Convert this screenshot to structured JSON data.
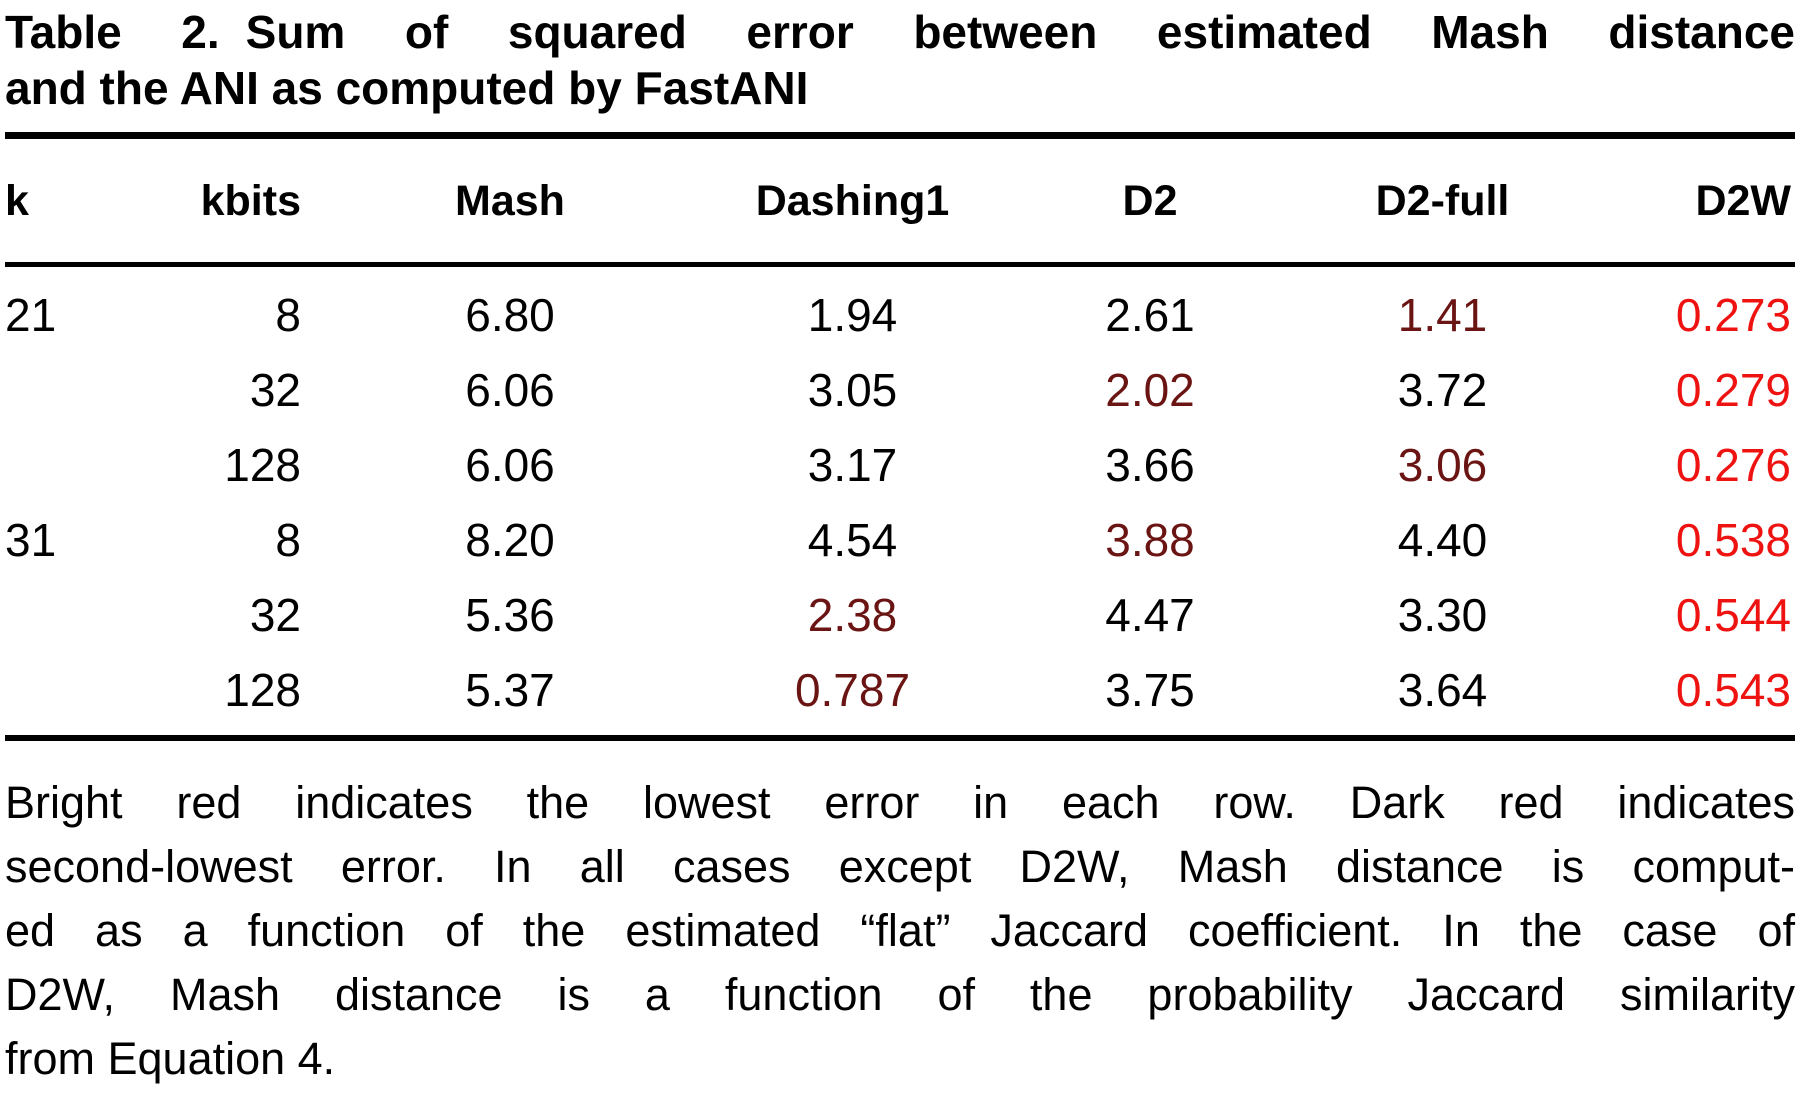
{
  "title": {
    "label": "Table 2.",
    "line1": "Sum of squared error between estimated Mash distance",
    "line2": "and the ANI as computed by FastANI"
  },
  "colors": {
    "lowest": "#ee1311",
    "second_lowest": "#6a1413",
    "text": "#000000",
    "background": "#ffffff"
  },
  "legend": {
    "lowest_label": "Bright red = lowest error in row",
    "second_lowest_label": "Dark red = second-lowest error in row"
  },
  "table": {
    "columns": [
      {
        "key": "k",
        "label": "k",
        "align": "left"
      },
      {
        "key": "kbits",
        "label": "kbits",
        "align": "right"
      },
      {
        "key": "mash",
        "label": "Mash",
        "align": "center"
      },
      {
        "key": "dashing1",
        "label": "Dashing1",
        "align": "center"
      },
      {
        "key": "d2",
        "label": "D2",
        "align": "center"
      },
      {
        "key": "d2-full",
        "label": "D2-full",
        "align": "center"
      },
      {
        "key": "d2w",
        "label": "D2W",
        "align": "right"
      }
    ],
    "rows": [
      {
        "cells": [
          {
            "text": "21"
          },
          {
            "text": "8"
          },
          {
            "text": "6.80"
          },
          {
            "text": "1.94"
          },
          {
            "text": "2.61"
          },
          {
            "text": "1.41",
            "emphasis": "second_lowest"
          },
          {
            "text": "0.273",
            "emphasis": "lowest"
          }
        ]
      },
      {
        "cells": [
          {
            "text": ""
          },
          {
            "text": "32"
          },
          {
            "text": "6.06"
          },
          {
            "text": "3.05"
          },
          {
            "text": "2.02",
            "emphasis": "second_lowest"
          },
          {
            "text": "3.72"
          },
          {
            "text": "0.279",
            "emphasis": "lowest"
          }
        ]
      },
      {
        "cells": [
          {
            "text": ""
          },
          {
            "text": "128"
          },
          {
            "text": "6.06"
          },
          {
            "text": "3.17"
          },
          {
            "text": "3.66"
          },
          {
            "text": "3.06",
            "emphasis": "second_lowest"
          },
          {
            "text": "0.276",
            "emphasis": "lowest"
          }
        ]
      },
      {
        "cells": [
          {
            "text": "31"
          },
          {
            "text": "8"
          },
          {
            "text": "8.20"
          },
          {
            "text": "4.54"
          },
          {
            "text": "3.88",
            "emphasis": "second_lowest"
          },
          {
            "text": "4.40"
          },
          {
            "text": "0.538",
            "emphasis": "lowest"
          }
        ]
      },
      {
        "cells": [
          {
            "text": ""
          },
          {
            "text": "32"
          },
          {
            "text": "5.36"
          },
          {
            "text": "2.38",
            "emphasis": "second_lowest"
          },
          {
            "text": "4.47"
          },
          {
            "text": "3.30"
          },
          {
            "text": "0.544",
            "emphasis": "lowest"
          }
        ]
      },
      {
        "cells": [
          {
            "text": ""
          },
          {
            "text": "128"
          },
          {
            "text": "5.37"
          },
          {
            "text": "0.787",
            "emphasis": "second_lowest"
          },
          {
            "text": "3.75"
          },
          {
            "text": "3.64"
          },
          {
            "text": "0.543",
            "emphasis": "lowest"
          }
        ]
      }
    ]
  },
  "footnote": {
    "lines": [
      "Bright red indicates the lowest error in each row. Dark red indicates",
      "second-lowest error. In all cases except D2W, Mash distance is comput-",
      "ed as a function of the estimated “flat” Jaccard coefficient. In the case of",
      "D2W, Mash distance is a function of the probability Jaccard similarity",
      "from Equation 4."
    ]
  }
}
